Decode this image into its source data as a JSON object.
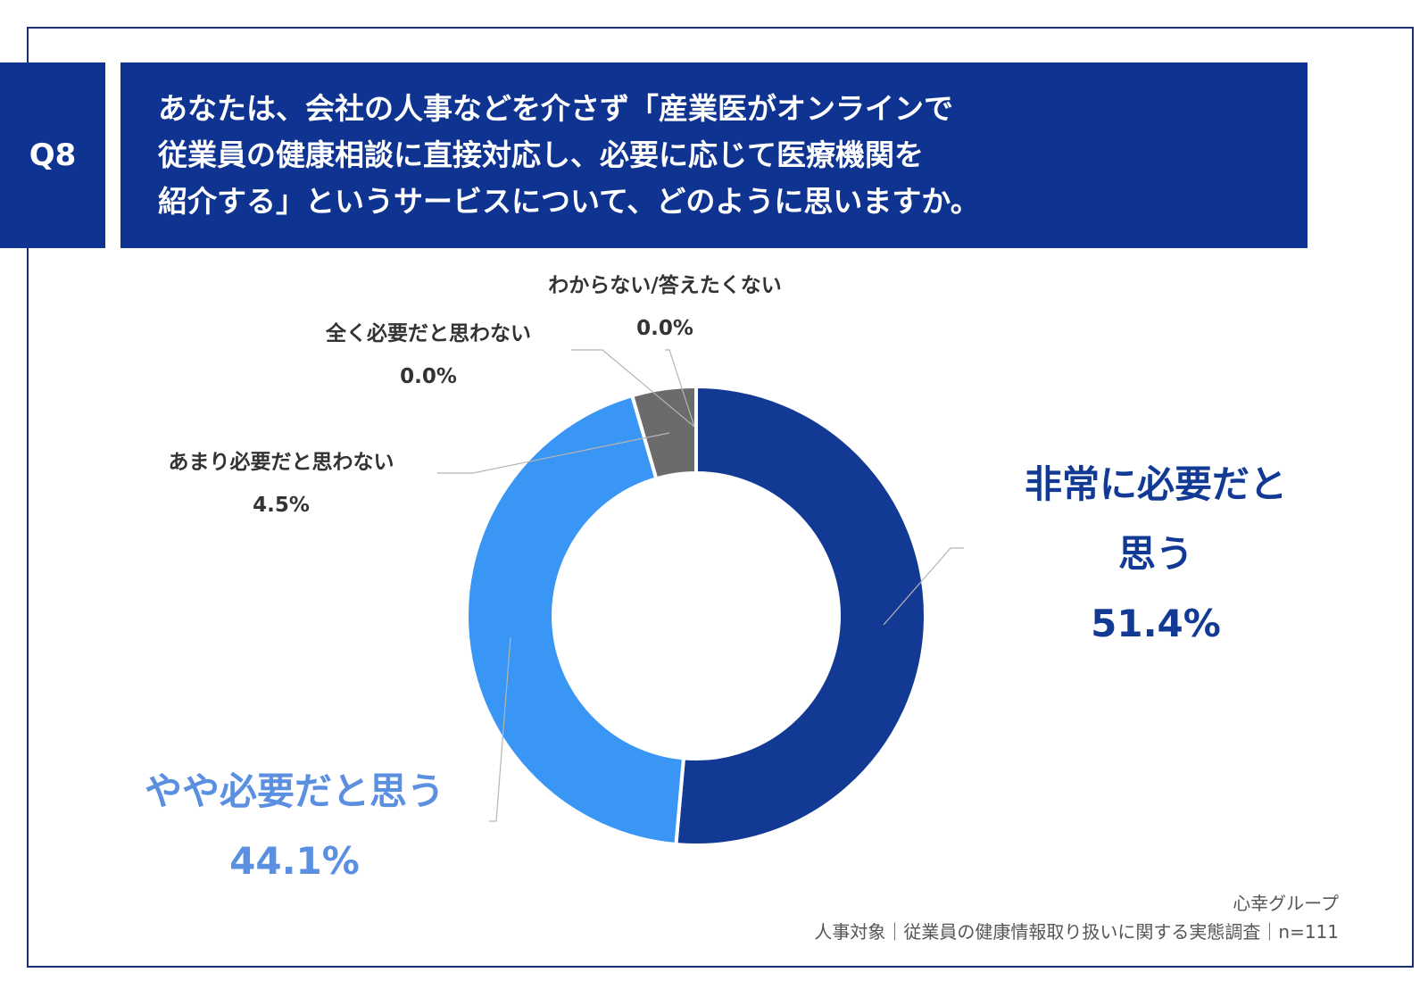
{
  "question": {
    "tag": "Q8",
    "lines": [
      "あなたは、会社の人事などを介さず「産業医がオンラインで",
      "従業員の健康相談に直接対応し、必要に応じて医療機関を",
      "紹介する」というサービスについて、どのように思いますか。"
    ]
  },
  "chart_data": {
    "type": "pie",
    "donut": true,
    "title": "あなたは、会社の人事などを介さず「産業医がオンラインで従業員の健康相談に直接対応し、必要に応じて医療機関を紹介する」というサービスについて、どのように思いますか。",
    "categories": [
      "非常に必要だと思う",
      "やや必要だと思う",
      "あまり必要だと思わない",
      "全く必要だと思わない",
      "わからない/答えたくない"
    ],
    "values": [
      51.4,
      44.1,
      4.5,
      0.0,
      0.0
    ],
    "colors": [
      "#123a94",
      "#3a96f5",
      "#6b6b6b",
      "#6b6b6b",
      "#6b6b6b"
    ],
    "labels": [
      {
        "name_lines": [
          "非常に必要だと",
          "思う"
        ],
        "value": "51.4%",
        "color": "#123a94"
      },
      {
        "name_lines": [
          "やや必要だと思う"
        ],
        "value": "44.1%",
        "color": "#5b8fe0"
      },
      {
        "name_lines": [
          "あまり必要だと思わない"
        ],
        "value": "4.5%",
        "color": "#333333"
      },
      {
        "name_lines": [
          "全く必要だと思わない"
        ],
        "value": "0.0%",
        "color": "#333333"
      },
      {
        "name_lines": [
          "わからない/答えたくない"
        ],
        "value": "0.0%",
        "color": "#333333"
      }
    ]
  },
  "source": {
    "company": "心幸グループ",
    "survey": "人事対象｜従業員の健康情報取り扱いに関する実態調査｜n=111"
  }
}
